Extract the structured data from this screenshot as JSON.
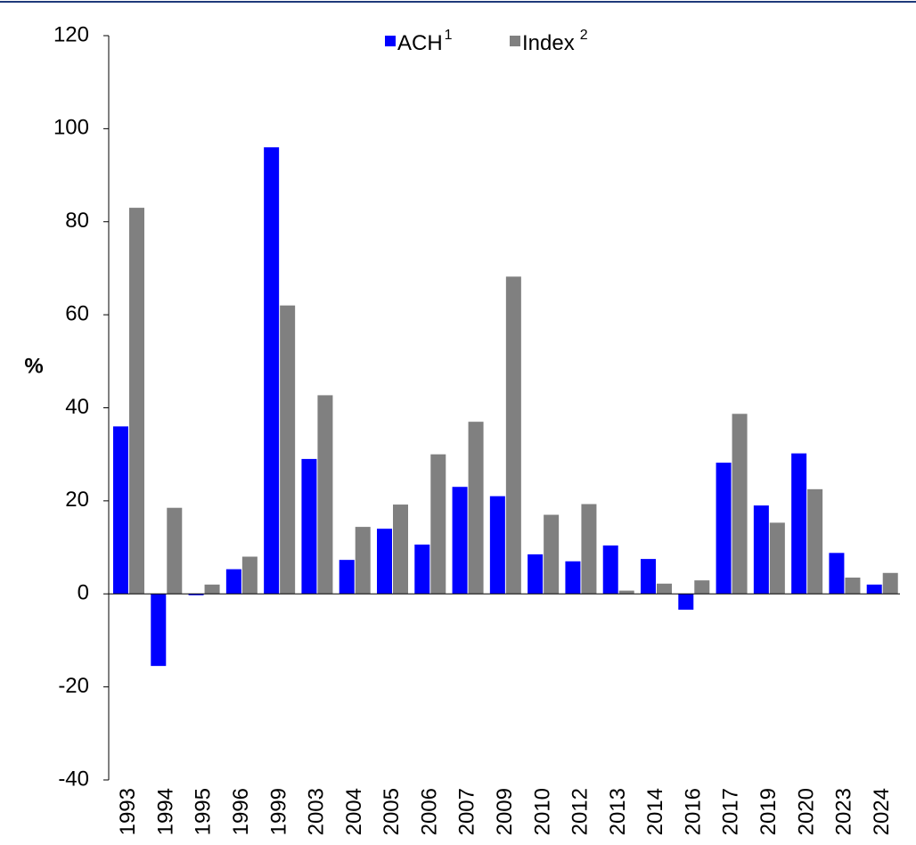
{
  "chart_data": {
    "type": "bar",
    "y_label": "%",
    "categories": [
      "1993",
      "1994",
      "1995",
      "1996",
      "1999",
      "2003",
      "2004",
      "2005",
      "2006",
      "2007",
      "2009",
      "2010",
      "2012",
      "2013",
      "2014",
      "2016",
      "2017",
      "2019",
      "2020",
      "2023",
      "2024"
    ],
    "series": [
      {
        "name": "ACH",
        "footnote_marker": "1",
        "color": "#0000ff",
        "values": [
          36,
          -15.5,
          -0.3,
          5.3,
          96,
          29,
          7.3,
          14,
          10.6,
          23,
          21,
          8.5,
          7,
          10.4,
          7.5,
          -3.4,
          28.2,
          19,
          30.2,
          8.8,
          2
        ]
      },
      {
        "name": "Index",
        "footnote_marker": "2",
        "color": "#808080",
        "values": [
          83,
          18.5,
          2,
          8,
          62,
          42.7,
          14.4,
          19.2,
          30,
          37,
          68.2,
          17,
          19.3,
          0.7,
          2.2,
          2.9,
          38.7,
          15.3,
          22.5,
          3.5,
          4.5
        ]
      }
    ],
    "ylim": [
      -40,
      120
    ],
    "yticks": [
      -40,
      -20,
      0,
      20,
      40,
      60,
      80,
      100,
      120
    ]
  }
}
